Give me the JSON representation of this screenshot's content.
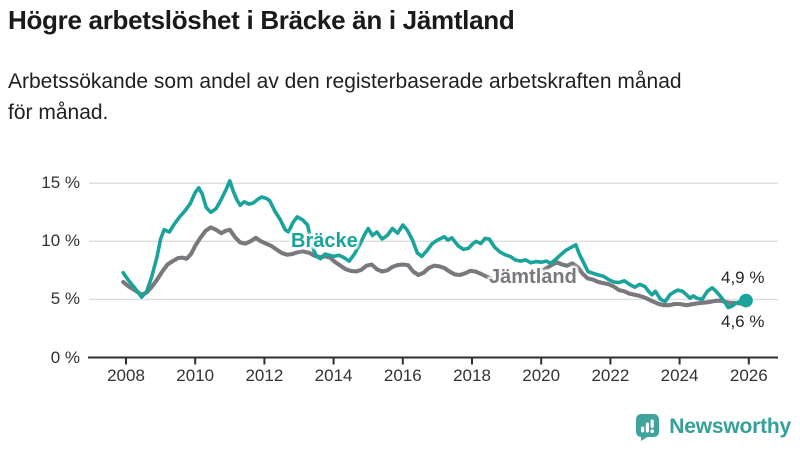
{
  "header": {
    "title": "Högre arbetslöshet i Bräcke än i Jämtland",
    "subtitle_line1": "Arbetssökande som andel av den registerbaserade arbetskraften månad",
    "subtitle_line2": "för månad."
  },
  "chart_data": {
    "type": "line",
    "title": "Högre arbetslöshet i Bräcke än i Jämtland",
    "subtitle": "Arbetssökande som andel av den registerbaserade arbetskraften månad för månad.",
    "grid": "horizontal",
    "legend_position": "inline-labels",
    "x_axis": {
      "range": [
        2007.9,
        2026.35
      ],
      "ticks": [
        2008,
        2010,
        2012,
        2014,
        2016,
        2018,
        2020,
        2022,
        2024,
        2026
      ],
      "tick_labels": [
        "2008",
        "2010",
        "2012",
        "2014",
        "2016",
        "2018",
        "2020",
        "2022",
        "2024",
        "2026"
      ]
    },
    "y_axis": {
      "unit": "%",
      "range": [
        0,
        15.5
      ],
      "ticks": [
        0,
        5,
        10,
        15
      ],
      "tick_labels": [
        "0 %",
        "5 %",
        "10 %",
        "15 %"
      ]
    },
    "series": [
      {
        "name": "Bräcke",
        "color": "#1aa39a",
        "end_label": "4,9 %",
        "end_value": 4.9,
        "end_dot": true,
        "points": [
          [
            2007.92,
            7.3
          ],
          [
            2008.08,
            6.6
          ],
          [
            2008.25,
            6.0
          ],
          [
            2008.45,
            5.2
          ],
          [
            2008.6,
            5.7
          ],
          [
            2008.75,
            7.0
          ],
          [
            2008.9,
            8.7
          ],
          [
            2009.0,
            10.2
          ],
          [
            2009.1,
            11.0
          ],
          [
            2009.25,
            10.8
          ],
          [
            2009.4,
            11.5
          ],
          [
            2009.55,
            12.1
          ],
          [
            2009.7,
            12.6
          ],
          [
            2009.85,
            13.2
          ],
          [
            2010.0,
            14.2
          ],
          [
            2010.1,
            14.6
          ],
          [
            2010.2,
            14.1
          ],
          [
            2010.32,
            12.9
          ],
          [
            2010.45,
            12.5
          ],
          [
            2010.6,
            12.8
          ],
          [
            2010.75,
            13.6
          ],
          [
            2010.9,
            14.5
          ],
          [
            2011.0,
            15.2
          ],
          [
            2011.1,
            14.3
          ],
          [
            2011.2,
            13.6
          ],
          [
            2011.3,
            13.1
          ],
          [
            2011.42,
            13.4
          ],
          [
            2011.55,
            13.2
          ],
          [
            2011.68,
            13.3
          ],
          [
            2011.8,
            13.6
          ],
          [
            2011.92,
            13.8
          ],
          [
            2012.05,
            13.7
          ],
          [
            2012.15,
            13.5
          ],
          [
            2012.3,
            12.6
          ],
          [
            2012.45,
            11.9
          ],
          [
            2012.6,
            11.0
          ],
          [
            2012.7,
            10.8
          ],
          [
            2012.82,
            11.6
          ],
          [
            2012.95,
            12.1
          ],
          [
            2013.1,
            11.85
          ],
          [
            2013.25,
            11.4
          ],
          [
            2013.38,
            9.6
          ],
          [
            2013.5,
            8.7
          ],
          [
            2013.62,
            8.5
          ],
          [
            2013.75,
            8.9
          ],
          [
            2013.88,
            8.8
          ],
          [
            2014.0,
            8.7
          ],
          [
            2014.15,
            8.8
          ],
          [
            2014.3,
            8.6
          ],
          [
            2014.45,
            8.3
          ],
          [
            2014.6,
            8.9
          ],
          [
            2014.75,
            9.7
          ],
          [
            2014.9,
            10.6
          ],
          [
            2015.0,
            11.1
          ],
          [
            2015.12,
            10.5
          ],
          [
            2015.25,
            10.8
          ],
          [
            2015.4,
            10.2
          ],
          [
            2015.55,
            10.5
          ],
          [
            2015.7,
            11.1
          ],
          [
            2015.85,
            10.7
          ],
          [
            2016.0,
            11.4
          ],
          [
            2016.12,
            11.0
          ],
          [
            2016.28,
            10.1
          ],
          [
            2016.42,
            9.0
          ],
          [
            2016.55,
            8.7
          ],
          [
            2016.7,
            9.2
          ],
          [
            2016.85,
            9.8
          ],
          [
            2017.0,
            10.1
          ],
          [
            2017.2,
            10.4
          ],
          [
            2017.3,
            10.1
          ],
          [
            2017.42,
            10.3
          ],
          [
            2017.6,
            9.6
          ],
          [
            2017.75,
            9.3
          ],
          [
            2017.9,
            9.4
          ],
          [
            2018.03,
            9.8
          ],
          [
            2018.12,
            10.0
          ],
          [
            2018.25,
            9.8
          ],
          [
            2018.38,
            10.25
          ],
          [
            2018.5,
            10.2
          ],
          [
            2018.65,
            9.5
          ],
          [
            2018.8,
            9.1
          ],
          [
            2018.95,
            8.85
          ],
          [
            2019.1,
            8.7
          ],
          [
            2019.25,
            8.4
          ],
          [
            2019.4,
            8.3
          ],
          [
            2019.55,
            8.4
          ],
          [
            2019.7,
            8.15
          ],
          [
            2019.85,
            8.25
          ],
          [
            2020.0,
            8.2
          ],
          [
            2020.15,
            8.3
          ],
          [
            2020.28,
            8.1
          ],
          [
            2020.42,
            8.45
          ],
          [
            2020.55,
            8.8
          ],
          [
            2020.7,
            9.2
          ],
          [
            2020.85,
            9.45
          ],
          [
            2021.0,
            9.7
          ],
          [
            2021.1,
            8.9
          ],
          [
            2021.22,
            8.2
          ],
          [
            2021.35,
            7.4
          ],
          [
            2021.5,
            7.25
          ],
          [
            2021.65,
            7.1
          ],
          [
            2021.8,
            7.0
          ],
          [
            2021.95,
            6.7
          ],
          [
            2022.1,
            6.5
          ],
          [
            2022.25,
            6.45
          ],
          [
            2022.4,
            6.6
          ],
          [
            2022.55,
            6.3
          ],
          [
            2022.7,
            6.05
          ],
          [
            2022.85,
            6.3
          ],
          [
            2023.0,
            6.1
          ],
          [
            2023.1,
            5.7
          ],
          [
            2023.2,
            5.4
          ],
          [
            2023.3,
            5.7
          ],
          [
            2023.45,
            5.0
          ],
          [
            2023.58,
            4.8
          ],
          [
            2023.72,
            5.4
          ],
          [
            2023.85,
            5.65
          ],
          [
            2023.95,
            5.8
          ],
          [
            2024.08,
            5.7
          ],
          [
            2024.2,
            5.4
          ],
          [
            2024.3,
            5.1
          ],
          [
            2024.4,
            5.3
          ],
          [
            2024.5,
            5.1
          ],
          [
            2024.65,
            5.0
          ],
          [
            2024.8,
            5.7
          ],
          [
            2024.94,
            6.0
          ],
          [
            2025.02,
            5.8
          ],
          [
            2025.17,
            5.3
          ],
          [
            2025.3,
            4.8
          ],
          [
            2025.4,
            4.3
          ],
          [
            2025.5,
            4.4
          ],
          [
            2025.65,
            4.7
          ],
          [
            2025.78,
            4.85
          ],
          [
            2025.92,
            4.9
          ]
        ]
      },
      {
        "name": "Jämtland",
        "color": "#7a787d",
        "end_label": "4,6 %",
        "end_value": 4.6,
        "end_dot": false,
        "points": [
          [
            2007.92,
            6.5
          ],
          [
            2008.08,
            6.1
          ],
          [
            2008.25,
            5.8
          ],
          [
            2008.45,
            5.4
          ],
          [
            2008.6,
            5.6
          ],
          [
            2008.75,
            6.1
          ],
          [
            2008.9,
            6.7
          ],
          [
            2009.05,
            7.4
          ],
          [
            2009.2,
            8.0
          ],
          [
            2009.35,
            8.3
          ],
          [
            2009.5,
            8.55
          ],
          [
            2009.62,
            8.6
          ],
          [
            2009.75,
            8.5
          ],
          [
            2009.88,
            8.9
          ],
          [
            2010.0,
            9.6
          ],
          [
            2010.15,
            10.3
          ],
          [
            2010.3,
            10.9
          ],
          [
            2010.45,
            11.2
          ],
          [
            2010.6,
            11.0
          ],
          [
            2010.75,
            10.7
          ],
          [
            2010.88,
            10.9
          ],
          [
            2011.0,
            11.0
          ],
          [
            2011.15,
            10.35
          ],
          [
            2011.3,
            9.9
          ],
          [
            2011.45,
            9.8
          ],
          [
            2011.6,
            10.0
          ],
          [
            2011.75,
            10.3
          ],
          [
            2011.9,
            10.0
          ],
          [
            2012.05,
            9.8
          ],
          [
            2012.2,
            9.6
          ],
          [
            2012.35,
            9.3
          ],
          [
            2012.5,
            9.0
          ],
          [
            2012.65,
            8.85
          ],
          [
            2012.8,
            8.9
          ],
          [
            2012.95,
            9.05
          ],
          [
            2013.1,
            9.15
          ],
          [
            2013.3,
            9.0
          ],
          [
            2013.45,
            8.75
          ],
          [
            2013.6,
            8.65
          ],
          [
            2013.75,
            8.7
          ],
          [
            2013.9,
            8.6
          ],
          [
            2014.05,
            8.2
          ],
          [
            2014.2,
            7.9
          ],
          [
            2014.35,
            7.6
          ],
          [
            2014.5,
            7.45
          ],
          [
            2014.65,
            7.4
          ],
          [
            2014.8,
            7.55
          ],
          [
            2014.95,
            7.9
          ],
          [
            2015.1,
            8.0
          ],
          [
            2015.25,
            7.6
          ],
          [
            2015.4,
            7.4
          ],
          [
            2015.55,
            7.5
          ],
          [
            2015.7,
            7.8
          ],
          [
            2015.85,
            7.95
          ],
          [
            2016.0,
            8.0
          ],
          [
            2016.15,
            7.95
          ],
          [
            2016.3,
            7.4
          ],
          [
            2016.45,
            7.1
          ],
          [
            2016.6,
            7.3
          ],
          [
            2016.75,
            7.7
          ],
          [
            2016.9,
            7.9
          ],
          [
            2017.05,
            7.85
          ],
          [
            2017.2,
            7.7
          ],
          [
            2017.35,
            7.4
          ],
          [
            2017.5,
            7.15
          ],
          [
            2017.65,
            7.1
          ],
          [
            2017.8,
            7.25
          ],
          [
            2017.95,
            7.45
          ],
          [
            2018.1,
            7.4
          ],
          [
            2018.25,
            7.2
          ],
          [
            2018.4,
            7.0
          ],
          [
            2018.55,
            6.8
          ],
          [
            2018.7,
            6.65
          ],
          [
            2018.85,
            6.6
          ],
          [
            2019.0,
            6.6
          ],
          [
            2019.3,
            6.75
          ],
          [
            2019.6,
            6.95
          ],
          [
            2019.9,
            7.25
          ],
          [
            2020.1,
            7.6
          ],
          [
            2020.3,
            7.95
          ],
          [
            2020.45,
            8.2
          ],
          [
            2020.6,
            8.0
          ],
          [
            2020.75,
            7.9
          ],
          [
            2020.9,
            8.1
          ],
          [
            2021.05,
            7.8
          ],
          [
            2021.2,
            7.2
          ],
          [
            2021.35,
            6.8
          ],
          [
            2021.5,
            6.7
          ],
          [
            2021.65,
            6.5
          ],
          [
            2021.8,
            6.4
          ],
          [
            2021.95,
            6.3
          ],
          [
            2022.1,
            6.1
          ],
          [
            2022.25,
            5.8
          ],
          [
            2022.4,
            5.7
          ],
          [
            2022.55,
            5.5
          ],
          [
            2022.7,
            5.4
          ],
          [
            2022.85,
            5.3
          ],
          [
            2023.0,
            5.15
          ],
          [
            2023.1,
            5.0
          ],
          [
            2023.25,
            4.8
          ],
          [
            2023.4,
            4.6
          ],
          [
            2023.55,
            4.5
          ],
          [
            2023.7,
            4.5
          ],
          [
            2023.85,
            4.6
          ],
          [
            2024.0,
            4.6
          ],
          [
            2024.2,
            4.5
          ],
          [
            2024.4,
            4.6
          ],
          [
            2024.6,
            4.7
          ],
          [
            2024.8,
            4.75
          ],
          [
            2025.0,
            4.85
          ],
          [
            2025.15,
            4.9
          ],
          [
            2025.3,
            4.8
          ],
          [
            2025.45,
            4.7
          ],
          [
            2025.6,
            4.7
          ],
          [
            2025.75,
            4.65
          ],
          [
            2025.92,
            4.6
          ]
        ]
      }
    ]
  },
  "branding": {
    "logo_text": "Newsworthy",
    "logo_icon": "bar-chart-speech-bubble-icon",
    "logo_color": "#35a09a",
    "logo_bubble_color": "#41a49c"
  },
  "colors": {
    "background": "#ffffff",
    "gridline": "#dcdcdc",
    "axis": "#2f2f2f",
    "axis_text": "#333333",
    "title_text": "#1a1a1a"
  }
}
